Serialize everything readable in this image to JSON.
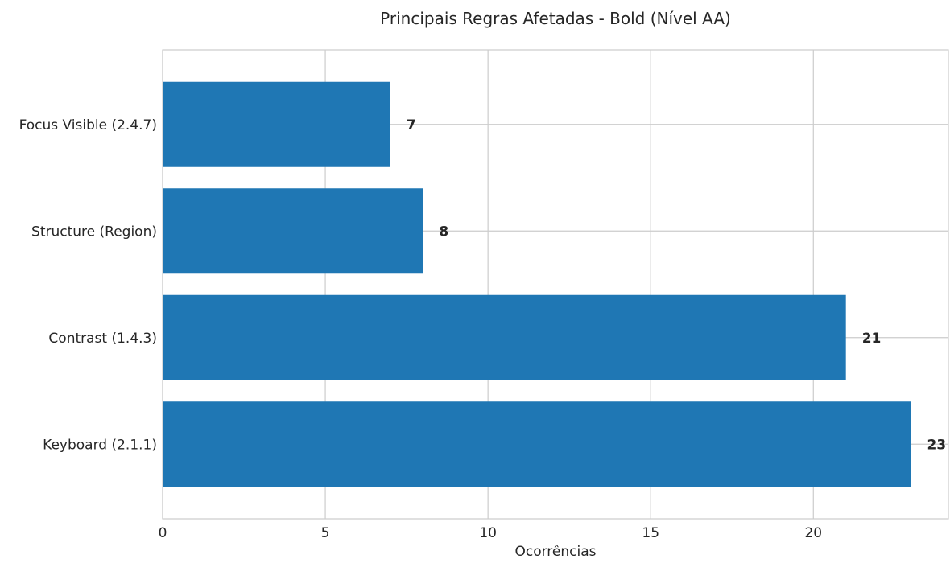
{
  "chart_data": {
    "type": "bar",
    "orientation": "horizontal",
    "title": "Principais Regras Afetadas - Bold (Nível AA)",
    "xlabel": "Ocorrências",
    "ylabel": "",
    "categories": [
      "Keyboard (2.1.1)",
      "Contrast (1.4.3)",
      "Structure (Region)",
      "Focus Visible (2.4.7)"
    ],
    "values": [
      23,
      21,
      8,
      7
    ],
    "xlim": [
      0,
      24.15
    ],
    "xticks": [
      0,
      5,
      10,
      15,
      20
    ],
    "grid": true,
    "bar_color": "#1f77b4",
    "value_labels": true
  }
}
